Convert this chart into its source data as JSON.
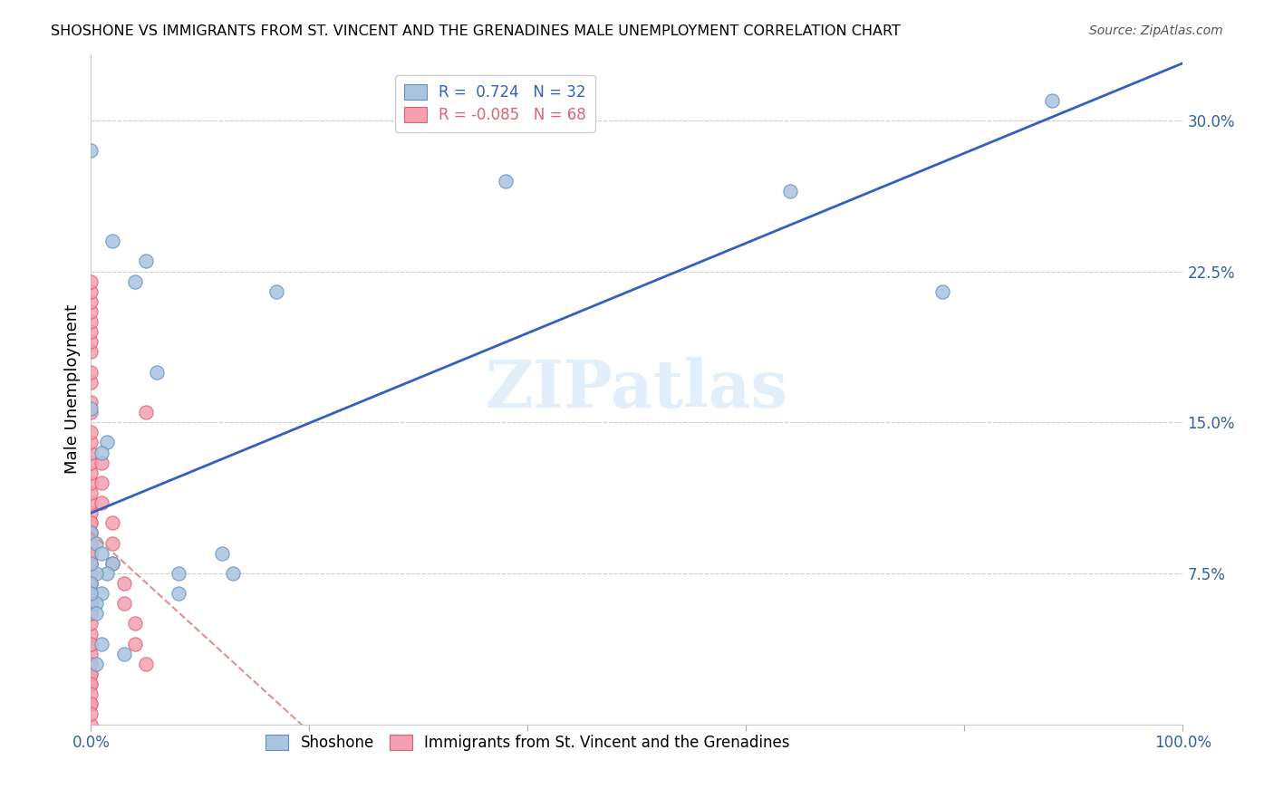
{
  "title": "SHOSHONE VS IMMIGRANTS FROM ST. VINCENT AND THE GRENADINES MALE UNEMPLOYMENT CORRELATION CHART",
  "source": "Source: ZipAtlas.com",
  "ylabel": "Male Unemployment",
  "xlabel": "",
  "xlim": [
    0,
    1.0
  ],
  "ylim": [
    0,
    0.333
  ],
  "xticks": [
    0.0,
    0.2,
    0.4,
    0.6,
    0.8,
    1.0
  ],
  "xticklabels": [
    "0.0%",
    "",
    "",
    "",
    "",
    "100.0%"
  ],
  "yticks": [
    0.0,
    0.075,
    0.15,
    0.225,
    0.3
  ],
  "yticklabels": [
    "",
    "7.5%",
    "15.0%",
    "22.5%",
    "30.0%"
  ],
  "legend_r1": "R =  0.724   N = 32",
  "legend_r2": "R = -0.085   N = 68",
  "blue_color": "#a8c4e0",
  "pink_color": "#f4a0b0",
  "blue_line_color": "#3060c0",
  "pink_line_color": "#e09090",
  "watermark": "ZIPatlas",
  "shoshone_x": [
    0.02,
    0.05,
    0.04,
    0.0,
    0.015,
    0.01,
    0.0,
    0.005,
    0.01,
    0.02,
    0.015,
    0.08,
    0.12,
    0.13,
    0.08,
    0.06,
    0.17,
    0.38,
    0.64,
    0.78,
    0.88,
    0.0,
    0.005,
    0.01,
    0.005,
    0.0,
    0.0,
    0.005,
    0.01,
    0.03,
    0.005,
    0.0
  ],
  "shoshone_y": [
    0.24,
    0.23,
    0.22,
    0.157,
    0.14,
    0.135,
    0.095,
    0.09,
    0.085,
    0.08,
    0.075,
    0.065,
    0.085,
    0.075,
    0.075,
    0.175,
    0.215,
    0.27,
    0.265,
    0.215,
    0.31,
    0.285,
    0.075,
    0.065,
    0.06,
    0.07,
    0.065,
    0.055,
    0.04,
    0.035,
    0.03,
    0.08
  ],
  "immigrant_x": [
    0.0,
    0.0,
    0.0,
    0.0,
    0.0,
    0.0,
    0.0,
    0.0,
    0.0,
    0.0,
    0.0,
    0.0,
    0.0,
    0.0,
    0.0,
    0.0,
    0.0,
    0.0,
    0.0,
    0.0,
    0.0,
    0.0,
    0.0,
    0.0,
    0.0,
    0.0,
    0.0,
    0.0,
    0.0,
    0.0,
    0.0,
    0.0,
    0.0,
    0.0,
    0.0,
    0.0,
    0.0,
    0.0,
    0.0,
    0.0,
    0.0,
    0.0,
    0.0,
    0.0,
    0.0,
    0.0,
    0.0,
    0.0,
    0.0,
    0.0,
    0.0,
    0.0,
    0.0,
    0.0,
    0.0,
    0.0,
    0.01,
    0.01,
    0.01,
    0.02,
    0.02,
    0.02,
    0.03,
    0.03,
    0.04,
    0.04,
    0.05,
    0.05
  ],
  "immigrant_y": [
    0.0,
    0.01,
    0.02,
    0.025,
    0.03,
    0.035,
    0.04,
    0.045,
    0.05,
    0.055,
    0.06,
    0.065,
    0.07,
    0.075,
    0.08,
    0.085,
    0.09,
    0.095,
    0.1,
    0.105,
    0.11,
    0.115,
    0.12,
    0.125,
    0.13,
    0.135,
    0.14,
    0.145,
    0.155,
    0.16,
    0.17,
    0.175,
    0.185,
    0.19,
    0.195,
    0.2,
    0.205,
    0.21,
    0.215,
    0.22,
    0.07,
    0.065,
    0.06,
    0.055,
    0.08,
    0.09,
    0.085,
    0.095,
    0.1,
    0.04,
    0.03,
    0.025,
    0.02,
    0.015,
    0.01,
    0.005,
    0.13,
    0.12,
    0.11,
    0.1,
    0.09,
    0.08,
    0.07,
    0.06,
    0.05,
    0.04,
    0.03,
    0.155
  ]
}
